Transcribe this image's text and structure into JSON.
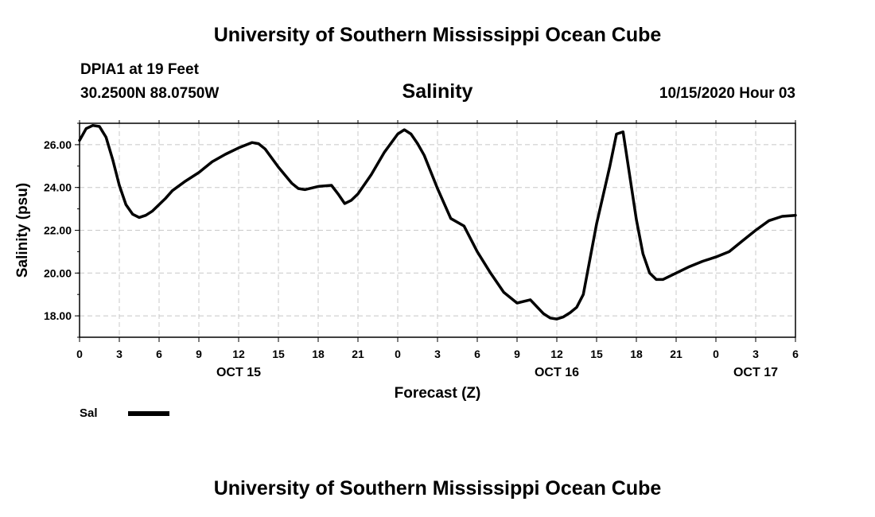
{
  "header": {
    "title": "University of Southern Mississippi Ocean Cube",
    "station": "DPIA1 at 19 Feet",
    "coords": "30.2500N 88.0750W",
    "variable": "Salinity",
    "run_time": "10/15/2020 Hour 03"
  },
  "footer": {
    "title": "University of Southern Mississippi Ocean Cube"
  },
  "legend": {
    "label": "Sal",
    "color": "#000000"
  },
  "chart_data": {
    "type": "line",
    "title": "Salinity",
    "xlabel": "Forecast (Z)",
    "ylabel": "Salinity (psu)",
    "xlim": [
      0,
      54
    ],
    "ylim": [
      17,
      27
    ],
    "grid": true,
    "legend_position": "bottom-left",
    "x_ticks": [
      0,
      3,
      6,
      9,
      12,
      15,
      18,
      21,
      24,
      27,
      30,
      33,
      36,
      39,
      42,
      45,
      48,
      51,
      54
    ],
    "x_tick_labels": [
      "0",
      "3",
      "6",
      "9",
      "12",
      "15",
      "18",
      "21",
      "0",
      "3",
      "6",
      "9",
      "12",
      "15",
      "18",
      "21",
      "0",
      "3",
      "6"
    ],
    "date_labels": [
      {
        "x": 12,
        "label": "OCT 15"
      },
      {
        "x": 36,
        "label": "OCT 16"
      },
      {
        "x": 51,
        "label": "OCT 17"
      }
    ],
    "y_ticks": [
      18,
      20,
      22,
      24,
      26
    ],
    "y_tick_labels": [
      "18.00",
      "20.00",
      "22.00",
      "24.00",
      "26.00"
    ],
    "series": [
      {
        "name": "Sal",
        "color": "#000000",
        "x": [
          0,
          0.5,
          1,
          1.5,
          2,
          2.5,
          3,
          3.5,
          4,
          4.5,
          5,
          5.5,
          6,
          6.5,
          7,
          8,
          9,
          10,
          11,
          12,
          13,
          13.5,
          14,
          15,
          16,
          16.5,
          17,
          18,
          19,
          19.5,
          20,
          20.5,
          21,
          22,
          23,
          24,
          24.5,
          25,
          25.5,
          26,
          27,
          28,
          29,
          30,
          31,
          32,
          33,
          34,
          35,
          35.5,
          36,
          36.5,
          37,
          37.5,
          38,
          39,
          40,
          40.5,
          41,
          42,
          42.5,
          43,
          43.5,
          44,
          45,
          46,
          47,
          48,
          49,
          50,
          51,
          52,
          53,
          54
        ],
        "values": [
          26.2,
          26.75,
          26.9,
          26.85,
          26.35,
          25.3,
          24.1,
          23.2,
          22.75,
          22.6,
          22.7,
          22.9,
          23.2,
          23.5,
          23.85,
          24.3,
          24.7,
          25.2,
          25.55,
          25.85,
          26.1,
          26.05,
          25.8,
          24.95,
          24.2,
          23.95,
          23.9,
          24.05,
          24.1,
          23.7,
          23.25,
          23.4,
          23.7,
          24.6,
          25.65,
          26.5,
          26.7,
          26.5,
          26.05,
          25.5,
          23.95,
          22.55,
          22.2,
          21.0,
          20.0,
          19.1,
          18.6,
          18.75,
          18.1,
          17.9,
          17.85,
          17.95,
          18.15,
          18.4,
          19.0,
          22.3,
          25.0,
          26.5,
          26.6,
          22.5,
          20.9,
          20.0,
          19.7,
          19.7,
          20.0,
          20.3,
          20.55,
          20.75,
          21.0,
          21.5,
          22.0,
          22.45,
          22.65,
          22.7
        ]
      }
    ]
  }
}
